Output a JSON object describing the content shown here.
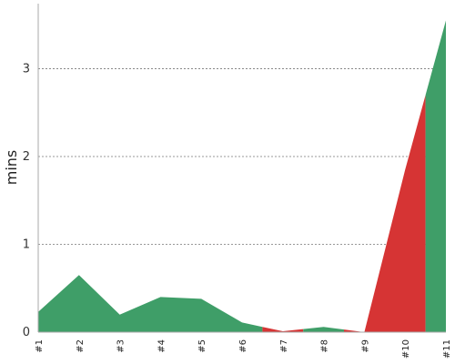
{
  "chart_data": {
    "type": "area",
    "categories": [
      "#1",
      "#2",
      "#3",
      "#4",
      "#5",
      "#6",
      "#7",
      "#8",
      "#9",
      "#10",
      "#11"
    ],
    "values": [
      0.23,
      0.65,
      0.2,
      0.4,
      0.38,
      0.11,
      0.01,
      0.06,
      0.0,
      1.85,
      3.55
    ],
    "status": [
      "good",
      "good",
      "good",
      "good",
      "good",
      "good",
      "bad",
      "good",
      "bad",
      "bad",
      "good"
    ],
    "ylabel": "mins",
    "ylim": [
      0,
      3.7
    ],
    "yticks": [
      0,
      1,
      2,
      3
    ],
    "grid": true,
    "colors": {
      "good": "#3f9e68",
      "bad": "#d63434",
      "grid": "#777777",
      "axis": "#aaaaaa"
    }
  }
}
